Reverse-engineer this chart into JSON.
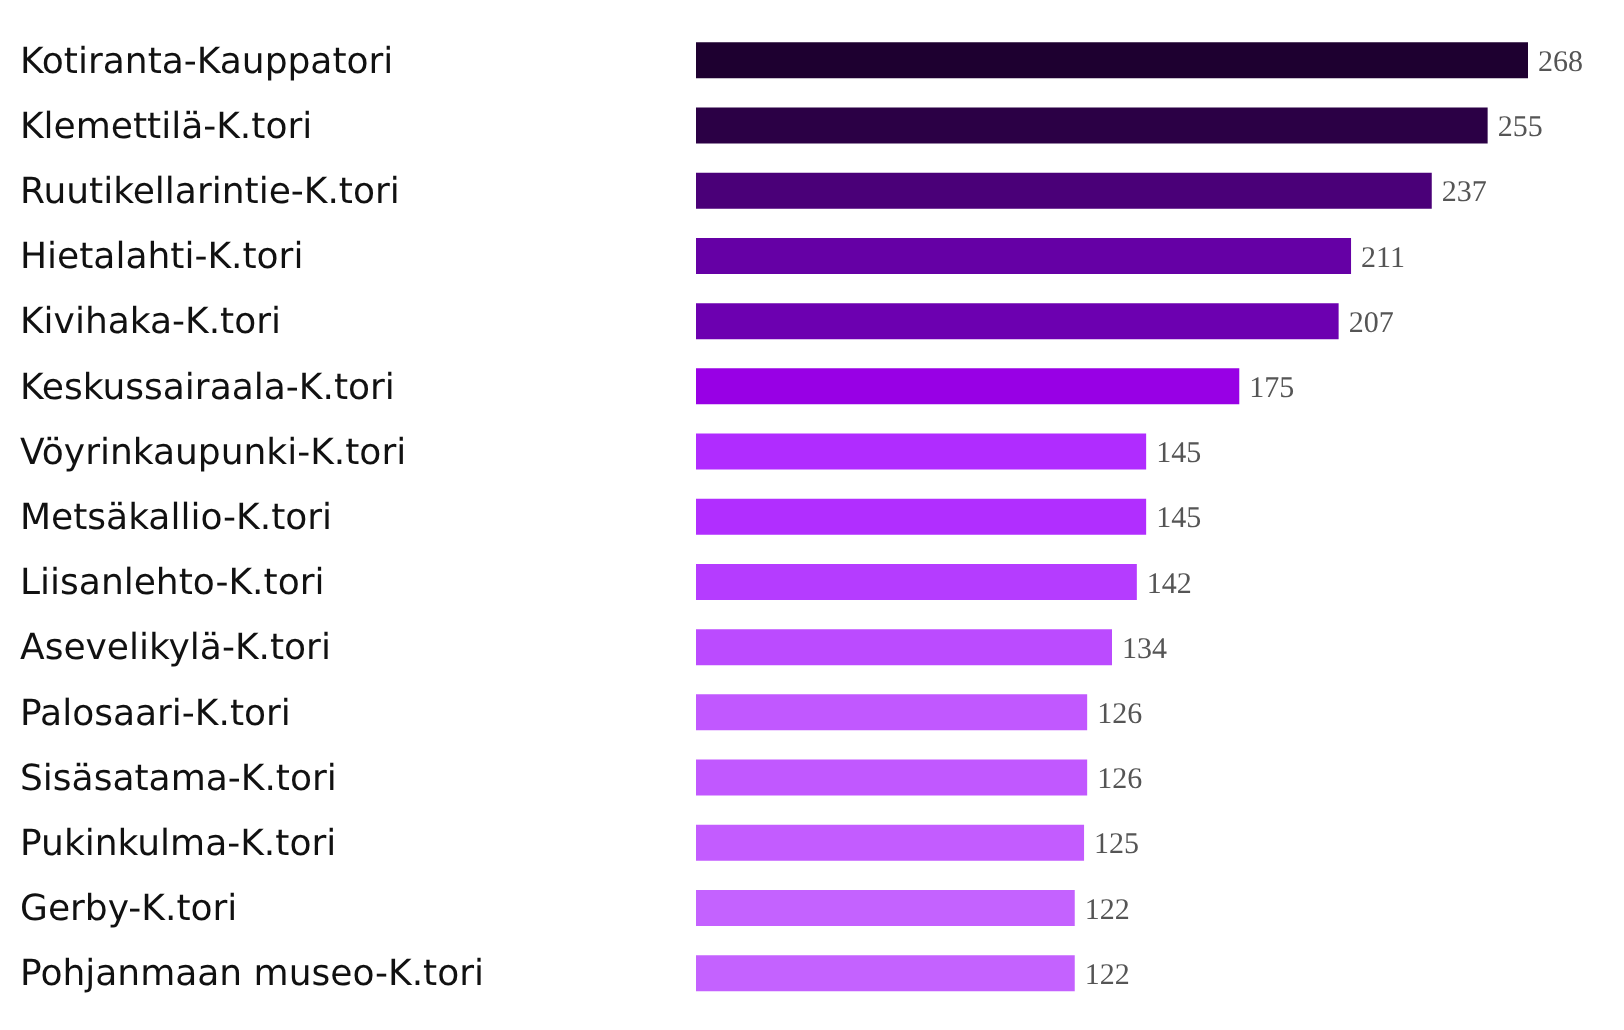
{
  "chart_data": {
    "type": "bar",
    "orientation": "horizontal",
    "data_labels": true,
    "categories": [
      "Kotiranta-Kauppatori",
      "Klemettilä-K.tori",
      "Ruutikellarintie-K.tori",
      "Hietalahti-K.tori",
      "Kivihaka-K.tori",
      "Keskussairaala-K.tori",
      "Vöyrinkaupunki-K.tori",
      "Metsäkallio-K.tori",
      "Liisanlehto-K.tori",
      "Asevelikylä-K.tori",
      "Palosaari-K.tori",
      "Sisäsatama-K.tori",
      "Pukinkulma-K.tori",
      "Gerby-K.tori",
      "Pohjanmaan museo-K.tori"
    ],
    "values": [
      268,
      255,
      237,
      211,
      207,
      175,
      145,
      145,
      142,
      134,
      126,
      126,
      125,
      122,
      122
    ],
    "colors": [
      "#1e0030",
      "#2b0045",
      "#4a0078",
      "#6500a5",
      "#6c00b0",
      "#9800e5",
      "#b02cff",
      "#b12eff",
      "#b53cff",
      "#bb4bff",
      "#c158ff",
      "#c158ff",
      "#c35cff",
      "#c462ff",
      "#c462ff"
    ]
  }
}
